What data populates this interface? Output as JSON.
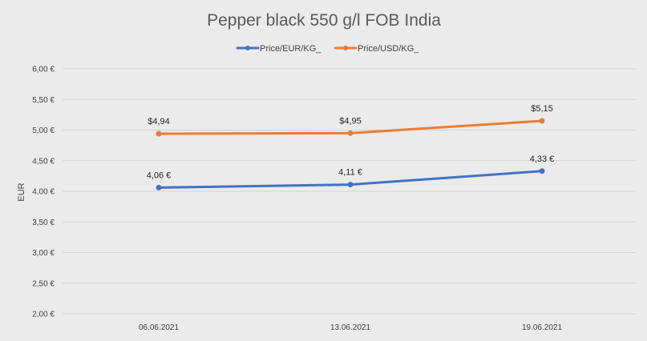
{
  "chart_data": {
    "type": "line",
    "title": "Pepper black 550 g/l FOB India",
    "xlabel": "",
    "ylabel": "EUR",
    "categories": [
      "06.06.2021",
      "13.06.2021",
      "19.06.2021"
    ],
    "ylim": [
      2.0,
      6.0
    ],
    "ytick_labels": [
      "2,00 €",
      "2,50 €",
      "3,00 €",
      "3,50 €",
      "4,00 €",
      "4,50 €",
      "5,00 €",
      "5,50 €",
      "6,00 €"
    ],
    "grid": true,
    "legend_position": "top",
    "series": [
      {
        "name": "Price/EUR/KG_",
        "color": "#4472c4",
        "values": [
          4.06,
          4.11,
          4.33
        ],
        "labels": [
          "4,06 €",
          "4,11 €",
          "4,33 €"
        ]
      },
      {
        "name": "Price/USD/KG_",
        "color": "#ed7d31",
        "values": [
          4.94,
          4.95,
          5.15
        ],
        "labels": [
          "$4,94",
          "$4,95",
          "$5,15"
        ]
      }
    ]
  }
}
